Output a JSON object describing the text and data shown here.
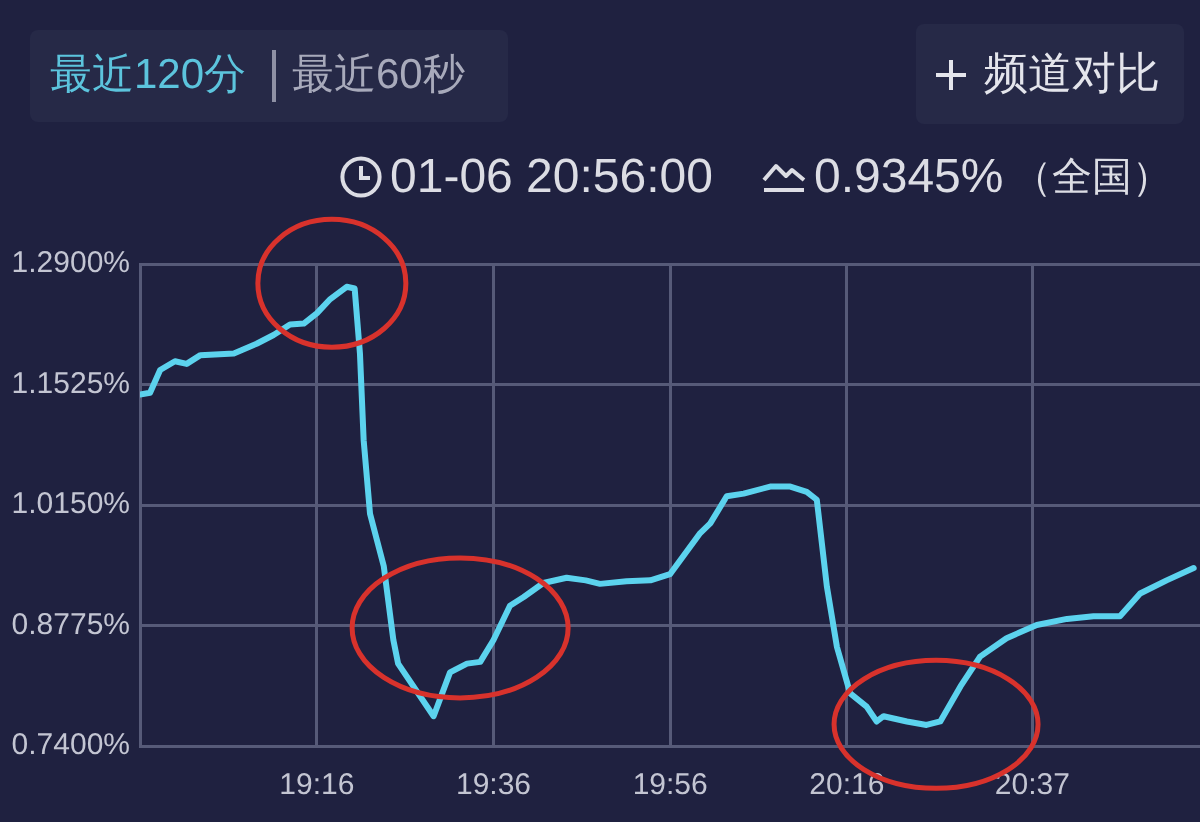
{
  "chart_data": {
    "type": "line",
    "annotations": [
      "最近120分",
      "最近60秒",
      "频道对比",
      "01-06 20:56:00",
      "0.9345%",
      "（全国）"
    ],
    "x": [
      18.933,
      18.952,
      18.971,
      18.999,
      19.021,
      19.047,
      19.11,
      19.153,
      19.185,
      19.216,
      19.242,
      19.267,
      19.292,
      19.323,
      19.338,
      19.348,
      19.355,
      19.367,
      19.393,
      19.411,
      19.42,
      19.487,
      19.518,
      19.55,
      19.575,
      19.6,
      19.631,
      19.657,
      19.694,
      19.738,
      19.774,
      19.801,
      19.851,
      19.896,
      19.933,
      19.99,
      20.009,
      20.04,
      20.072,
      20.122,
      20.16,
      20.191,
      20.21,
      20.229,
      20.248,
      20.273,
      20.304,
      20.323,
      20.336,
      20.38,
      20.417,
      20.443,
      20.481,
      20.518,
      20.568,
      20.625,
      20.682,
      20.732,
      20.782,
      20.82,
      20.87,
      20.921
    ],
    "values": [
      1.141,
      1.143,
      1.169,
      1.179,
      1.176,
      1.186,
      1.188,
      1.199,
      1.209,
      1.221,
      1.222,
      1.234,
      1.25,
      1.264,
      1.262,
      1.188,
      1.089,
      1.005,
      0.945,
      0.861,
      0.834,
      0.774,
      0.824,
      0.834,
      0.836,
      0.861,
      0.9,
      0.91,
      0.926,
      0.932,
      0.929,
      0.925,
      0.928,
      0.929,
      0.936,
      0.983,
      0.994,
      1.025,
      1.028,
      1.036,
      1.036,
      1.03,
      1.021,
      0.922,
      0.853,
      0.8,
      0.785,
      0.768,
      0.774,
      0.768,
      0.764,
      0.768,
      0.808,
      0.842,
      0.863,
      0.878,
      0.885,
      0.888,
      0.888,
      0.914,
      0.929,
      0.943
    ],
    "color": "#5cd3ee",
    "xlim": [
      18.933,
      20.933
    ],
    "xticks": [
      {
        "value": 19.2667,
        "label": "19:16"
      },
      {
        "value": 19.6,
        "label": "19:36"
      },
      {
        "value": 19.9333,
        "label": "19:56"
      },
      {
        "value": 20.2667,
        "label": "20:16"
      },
      {
        "value": 20.6167,
        "label": "20:37"
      }
    ],
    "ylim": [
      0.74,
      1.29
    ],
    "yticks": [
      {
        "value": 0.74,
        "label": "0.7400%"
      },
      {
        "value": 0.8775,
        "label": "0.8775%"
      },
      {
        "value": 1.015,
        "label": "1.0150%"
      },
      {
        "value": 1.1525,
        "label": "1.1525%"
      },
      {
        "value": 1.29,
        "label": "1.2900%"
      }
    ],
    "grid": true,
    "marker": "none",
    "line_style": "solid"
  }
}
